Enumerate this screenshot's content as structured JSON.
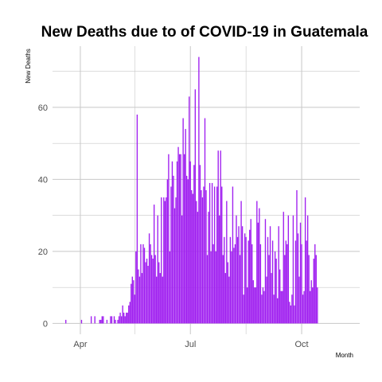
{
  "chart_data": {
    "type": "bar",
    "title": "New Deaths due to of COVID-19 in Guatemala",
    "xlabel": "Month",
    "ylabel": "New  Deaths",
    "x_start_date": "2020-03-13",
    "x_range": [
      "2020-03-09",
      "2020-11-18"
    ],
    "ylim": [
      -3,
      77
    ],
    "yticks": [
      0,
      20,
      40,
      60
    ],
    "xticks": [
      {
        "date": "2020-04-01",
        "label": "Apr"
      },
      {
        "date": "2020-07-01",
        "label": "Jul"
      },
      {
        "date": "2020-10-01",
        "label": "Oct"
      }
    ],
    "x_minor_gridlines": [
      "2020-05-16",
      "2020-08-16"
    ],
    "bar_color": "#a020f0",
    "grid": true,
    "grid_color": "#c8c8c8",
    "series": [
      {
        "values": [
          0,
          0,
          0,
          0,
          0,
          0,
          0,
          1,
          0,
          0,
          0,
          0,
          0,
          0,
          0,
          0,
          0,
          0,
          0,
          0,
          1,
          0,
          0,
          0,
          0,
          0,
          0,
          0,
          2,
          0,
          0,
          2,
          0,
          0,
          0,
          1,
          1,
          2,
          2,
          0,
          0,
          1,
          0,
          0,
          2,
          2,
          0,
          2,
          1,
          0,
          1,
          2,
          3,
          2,
          5,
          3,
          2,
          3,
          3,
          5,
          6,
          11,
          13,
          12,
          8,
          20,
          58,
          15,
          13,
          22,
          14,
          22,
          21,
          17,
          18,
          16,
          25,
          22,
          19,
          18,
          33,
          19,
          13,
          30,
          17,
          14,
          35,
          13,
          35,
          34,
          35,
          40,
          47,
          20,
          38,
          45,
          41,
          32,
          35,
          45,
          49,
          47,
          47,
          30,
          57,
          47,
          54,
          41,
          40,
          63,
          45,
          37,
          36,
          44,
          65,
          34,
          31,
          74,
          44,
          37,
          35,
          38,
          57,
          37,
          19,
          31,
          39,
          20,
          39,
          22,
          38,
          20,
          38,
          48,
          30,
          48,
          38,
          19,
          24,
          14,
          34,
          17,
          13,
          24,
          20,
          38,
          21,
          22,
          30,
          24,
          27,
          19,
          34,
          27,
          8,
          25,
          24,
          10,
          23,
          26,
          29,
          22,
          12,
          10,
          10,
          34,
          28,
          32,
          22,
          8,
          10,
          9,
          29,
          13,
          24,
          19,
          27,
          14,
          23,
          8,
          20,
          18,
          7,
          27,
          15,
          9,
          9,
          31,
          19,
          23,
          22,
          30,
          6,
          5,
          8,
          30,
          5,
          23,
          37,
          25,
          13,
          28,
          22,
          8,
          9,
          35,
          23,
          30,
          19,
          9,
          12,
          10,
          18,
          22,
          19,
          10
        ]
      }
    ]
  }
}
